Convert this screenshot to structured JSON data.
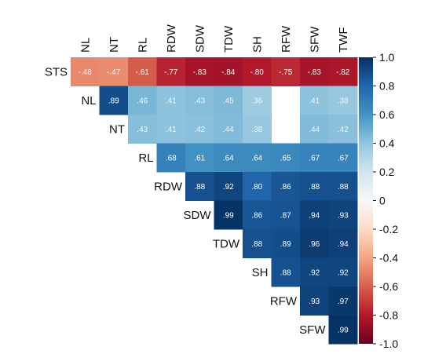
{
  "chart_data": {
    "type": "heatmap",
    "title": "",
    "variables": [
      "STS",
      "NL",
      "NT",
      "RL",
      "RDW",
      "SDW",
      "TDW",
      "SH",
      "RFW",
      "SFW",
      "TWF"
    ],
    "column_labels": [
      "NL",
      "NT",
      "RL",
      "RDW",
      "SDW",
      "TDW",
      "SH",
      "RFW",
      "SFW",
      "TWF"
    ],
    "row_labels": [
      "STS",
      "NL",
      "NT",
      "RL",
      "RDW",
      "SDW",
      "TDW",
      "SH",
      "RFW",
      "SFW"
    ],
    "matrix": [
      [
        -0.48,
        -0.47,
        -0.61,
        -0.77,
        -0.83,
        -0.84,
        -0.8,
        -0.75,
        -0.83,
        -0.82
      ],
      [
        null,
        0.89,
        0.46,
        0.41,
        0.43,
        0.45,
        0.36,
        null,
        0.41,
        0.38
      ],
      [
        null,
        null,
        0.43,
        0.41,
        0.42,
        0.44,
        0.38,
        null,
        0.44,
        0.42
      ],
      [
        null,
        null,
        null,
        0.68,
        0.61,
        0.64,
        0.64,
        0.65,
        0.67,
        0.67
      ],
      [
        null,
        null,
        null,
        null,
        0.88,
        0.92,
        0.8,
        0.86,
        0.88,
        0.88
      ],
      [
        null,
        null,
        null,
        null,
        null,
        0.99,
        0.86,
        0.87,
        0.94,
        0.93
      ],
      [
        null,
        null,
        null,
        null,
        null,
        null,
        0.88,
        0.89,
        0.96,
        0.94
      ],
      [
        null,
        null,
        null,
        null,
        null,
        null,
        null,
        0.88,
        0.92,
        0.92
      ],
      [
        null,
        null,
        null,
        null,
        null,
        null,
        null,
        null,
        0.93,
        0.97
      ],
      [
        null,
        null,
        null,
        null,
        null,
        null,
        null,
        null,
        null,
        0.99
      ]
    ],
    "colorbar": {
      "range": [
        -1.0,
        1.0
      ],
      "ticks": [
        "1.0",
        "0.8",
        "0.6",
        "0.4",
        "0.2",
        "0",
        "-0.2",
        "-0.4",
        "-0.6",
        "-0.8",
        "-1.0"
      ],
      "colors": [
        "#67001f",
        "#b2182b",
        "#d6604d",
        "#f4a582",
        "#fddbc7",
        "#f7f7f7",
        "#d1e5f0",
        "#92c5de",
        "#4393c3",
        "#2166ac",
        "#053061"
      ]
    }
  }
}
